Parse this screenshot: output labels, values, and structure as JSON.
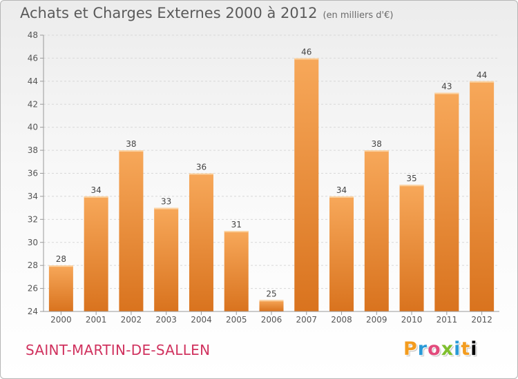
{
  "header": {
    "title": "Achats et Charges Externes 2000 à 2012",
    "unit": "(en milliers d'€)"
  },
  "footer": {
    "commune": "SAINT-MARTIN-DE-SALLEN",
    "logo": "Proxiti"
  },
  "colors": {
    "bar_light": "#f7a85a",
    "bar_dark": "#d9731e",
    "commune_text": "#d0315e",
    "grid": "#d8d8d8"
  },
  "chart_data": {
    "type": "bar",
    "categories": [
      "2000",
      "2001",
      "2002",
      "2003",
      "2004",
      "2005",
      "2006",
      "2007",
      "2008",
      "2009",
      "2010",
      "2011",
      "2012"
    ],
    "values": [
      28,
      34,
      38,
      33,
      36,
      31,
      25,
      46,
      34,
      38,
      35,
      43,
      44
    ],
    "title": "Achats et Charges Externes 2000 à 2012",
    "subtitle": "(en milliers d'€)",
    "xlabel": "",
    "ylabel": "",
    "ylim": [
      24,
      48
    ],
    "yticks": [
      24,
      26,
      28,
      30,
      32,
      34,
      36,
      38,
      40,
      42,
      44,
      46,
      48
    ],
    "grid": "horizontal dashed",
    "legend": "none",
    "data_labels": true
  }
}
